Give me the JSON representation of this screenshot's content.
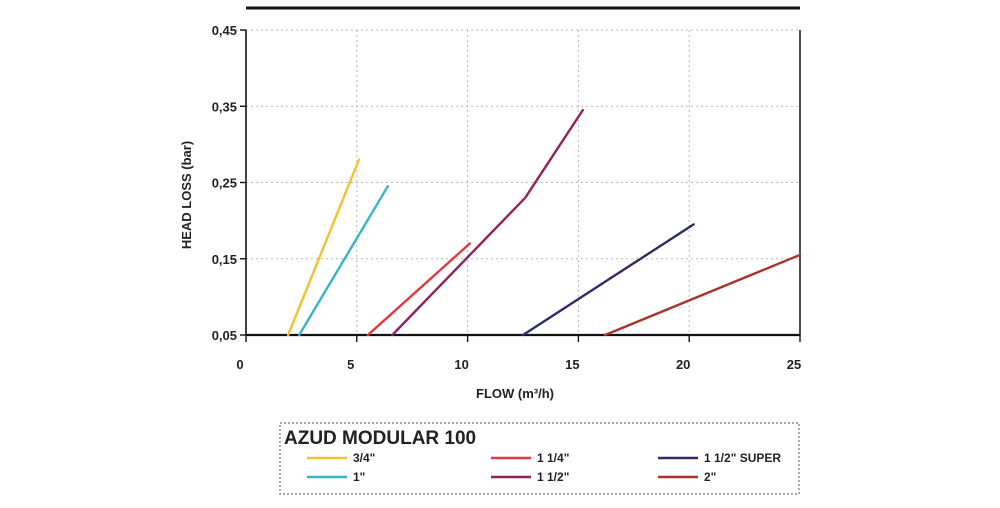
{
  "chart_data": {
    "type": "line",
    "xlabel": "FLOW (m³/h)",
    "ylabel": "HEAD LOSS (bar)",
    "xlim": [
      0,
      25
    ],
    "ylim": [
      0.05,
      0.45
    ],
    "x_ticks": [
      "0",
      "5",
      "10",
      "15",
      "20",
      "25"
    ],
    "y_ticks": [
      "0,05",
      "0,15",
      "0,25",
      "0,35",
      "0,45"
    ],
    "grid": true,
    "legend_title": "AZUD MODULAR 100",
    "legend_position": "bottom",
    "series": [
      {
        "name": "3/4\"",
        "color": "#f2c12e",
        "points": [
          [
            1.9,
            0.05
          ],
          [
            5.1,
            0.28
          ]
        ]
      },
      {
        "name": "1\"",
        "color": "#3bb3c7",
        "points": [
          [
            2.4,
            0.05
          ],
          [
            6.4,
            0.245
          ]
        ]
      },
      {
        "name": "1 1/4\"",
        "color": "#e0393e",
        "points": [
          [
            5.5,
            0.05
          ],
          [
            10.1,
            0.17
          ]
        ]
      },
      {
        "name": "1 1/2\"",
        "color": "#8e2360",
        "points": [
          [
            6.6,
            0.05
          ],
          [
            12.6,
            0.23
          ],
          [
            15.2,
            0.345
          ]
        ]
      },
      {
        "name": "1 1/2\" SUPER",
        "color": "#2b2f66",
        "points": [
          [
            12.5,
            0.05
          ],
          [
            20.2,
            0.195
          ]
        ]
      },
      {
        "name": "2\"",
        "color": "#a8332c",
        "points": [
          [
            16.2,
            0.05
          ],
          [
            25.0,
            0.155
          ]
        ]
      }
    ]
  }
}
